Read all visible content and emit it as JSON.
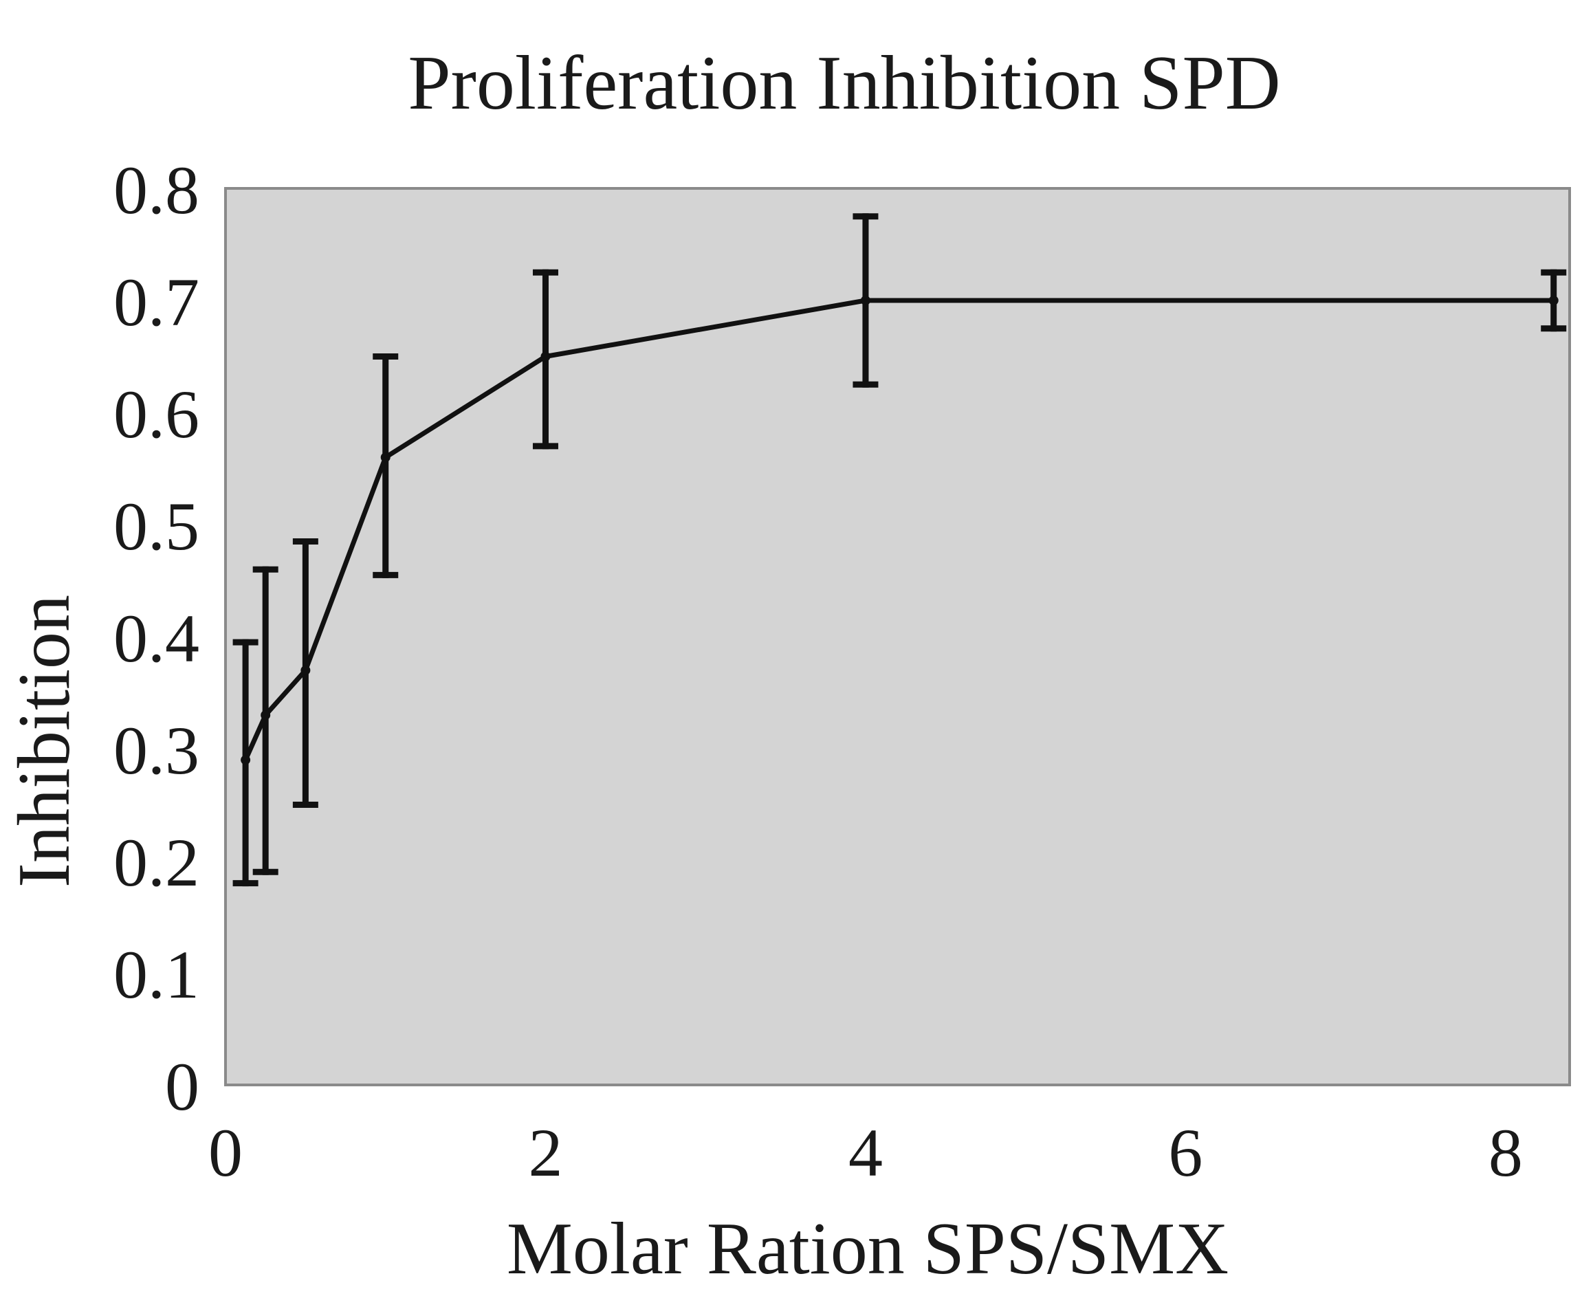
{
  "chart_data": {
    "type": "line",
    "title": "Proliferation Inhibition SPD",
    "xlabel": "Molar Ration SPS/SMX",
    "ylabel": "Inhibition",
    "xlim": [
      0,
      8.4
    ],
    "ylim": [
      0,
      0.8
    ],
    "x_ticks": [
      "0",
      "2",
      "4",
      "6",
      "8"
    ],
    "y_ticks": [
      "0",
      "0.1",
      "0.2",
      "0.3",
      "0.4",
      "0.5",
      "0.6",
      "0.7",
      "0.8"
    ],
    "grid": false,
    "plot_background": "#d4d4d4",
    "line_color": "#111111",
    "series": [
      {
        "x": [
          0.125,
          0.25,
          0.5,
          1,
          2,
          4,
          8.3
        ],
        "y": [
          0.29,
          0.33,
          0.37,
          0.56,
          0.65,
          0.7,
          0.7
        ],
        "y_err_low": [
          0.18,
          0.19,
          0.25,
          0.455,
          0.57,
          0.625,
          0.675
        ],
        "y_err_high": [
          0.395,
          0.46,
          0.485,
          0.65,
          0.725,
          0.775,
          0.725
        ]
      }
    ]
  }
}
